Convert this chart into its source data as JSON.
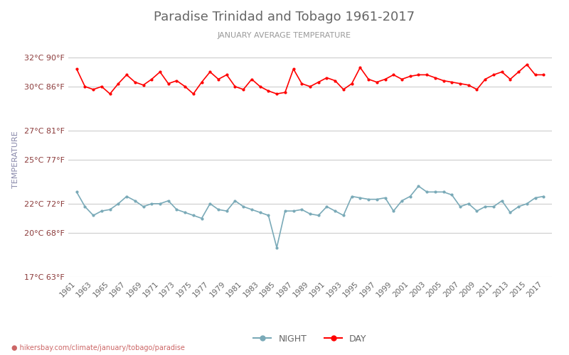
{
  "title": "Paradise Trinidad and Tobago 1961-2017",
  "subtitle": "JANUARY AVERAGE TEMPERATURE",
  "ylabel": "TEMPERATURE",
  "url_text": "hikersbay.com/climate/january/tobago/paradise",
  "title_color": "#666666",
  "subtitle_color": "#999999",
  "ylabel_color": "#8888aa",
  "background_color": "#ffffff",
  "grid_color": "#cccccc",
  "years": [
    1961,
    1962,
    1963,
    1964,
    1965,
    1966,
    1967,
    1968,
    1969,
    1970,
    1971,
    1972,
    1973,
    1974,
    1975,
    1976,
    1977,
    1978,
    1979,
    1980,
    1981,
    1982,
    1983,
    1984,
    1985,
    1986,
    1987,
    1988,
    1989,
    1990,
    1991,
    1992,
    1993,
    1994,
    1995,
    1996,
    1997,
    1998,
    1999,
    2000,
    2001,
    2002,
    2003,
    2004,
    2005,
    2006,
    2007,
    2008,
    2009,
    2010,
    2011,
    2012,
    2013,
    2014,
    2015,
    2016,
    2017
  ],
  "day_temps": [
    31.2,
    30.0,
    29.8,
    30.0,
    29.5,
    30.2,
    30.8,
    30.3,
    30.1,
    30.5,
    31.0,
    30.2,
    30.4,
    30.0,
    29.5,
    30.3,
    31.0,
    30.5,
    30.8,
    30.0,
    29.8,
    30.5,
    30.0,
    29.7,
    29.5,
    29.6,
    31.2,
    30.2,
    30.0,
    30.3,
    30.6,
    30.4,
    29.8,
    30.2,
    31.3,
    30.5,
    30.3,
    30.5,
    30.8,
    30.5,
    30.7,
    30.8,
    30.8,
    30.6,
    30.4,
    30.3,
    30.2,
    30.1,
    29.8,
    30.5,
    30.8,
    31.0,
    30.5,
    31.0,
    31.5,
    30.8,
    30.8
  ],
  "night_temps": [
    22.8,
    21.8,
    21.2,
    21.5,
    21.6,
    22.0,
    22.5,
    22.2,
    21.8,
    22.0,
    22.0,
    22.2,
    21.6,
    21.4,
    21.2,
    21.0,
    22.0,
    21.6,
    21.5,
    22.2,
    21.8,
    21.6,
    21.4,
    21.2,
    19.0,
    21.5,
    21.5,
    21.6,
    21.3,
    21.2,
    21.8,
    21.5,
    21.2,
    22.5,
    22.4,
    22.3,
    22.3,
    22.4,
    21.5,
    22.2,
    22.5,
    23.2,
    22.8,
    22.8,
    22.8,
    22.6,
    21.8,
    22.0,
    21.5,
    21.8,
    21.8,
    22.2,
    21.4,
    21.8,
    22.0,
    22.4,
    22.5
  ],
  "day_color": "#ff0000",
  "night_color": "#7aaab8",
  "ylim_min": 17,
  "ylim_max": 33,
  "yticks_c": [
    17,
    20,
    22,
    25,
    27,
    30,
    32
  ],
  "yticks_f": [
    63,
    68,
    72,
    77,
    81,
    86,
    90
  ],
  "legend_night_color": "#7aaab8",
  "legend_day_color": "#ff0000",
  "xtick_years": [
    1961,
    1963,
    1965,
    1967,
    1969,
    1971,
    1973,
    1975,
    1977,
    1979,
    1981,
    1983,
    1985,
    1987,
    1989,
    1991,
    1993,
    1995,
    1997,
    1999,
    2001,
    2003,
    2005,
    2007,
    2009,
    2011,
    2013,
    2015,
    2017
  ]
}
